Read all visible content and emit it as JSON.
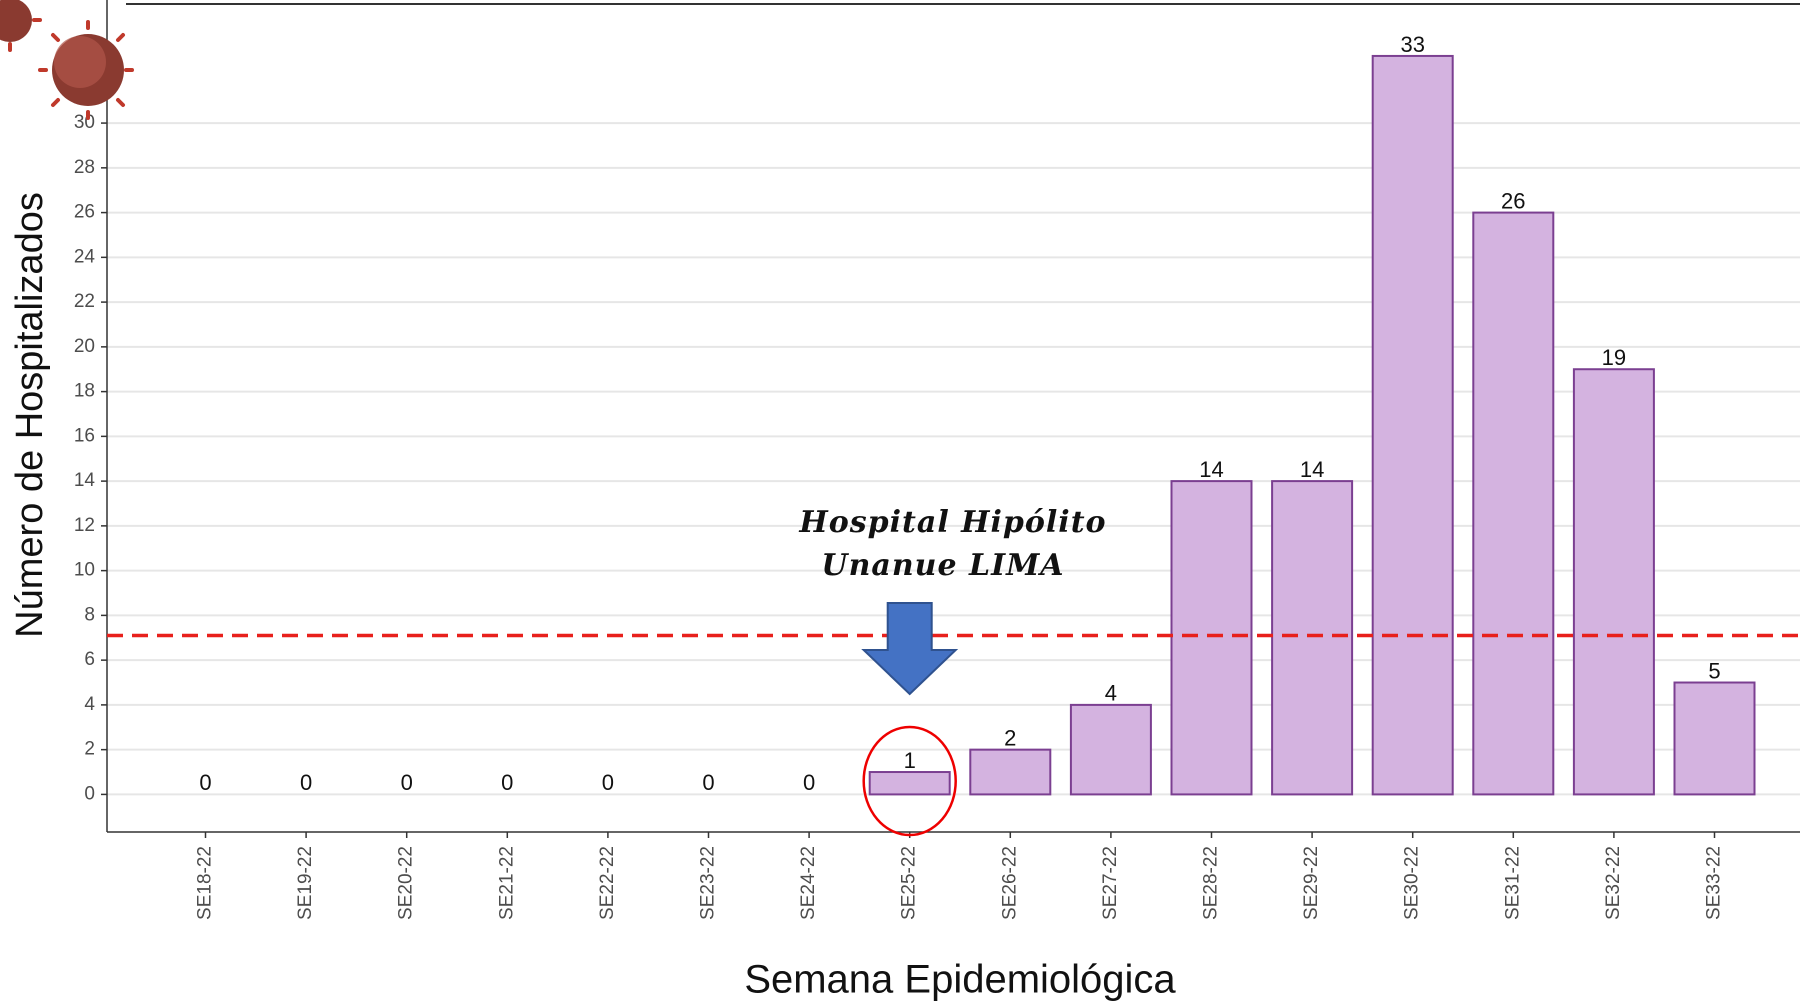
{
  "chart_data": {
    "type": "bar",
    "x_label": "Semana Epidemiológica",
    "y_label": "Número de Hospitalizados",
    "categories": [
      "SE18-22",
      "SE19-22",
      "SE20-22",
      "SE21-22",
      "SE22-22",
      "SE23-22",
      "SE24-22",
      "SE25-22",
      "SE26-22",
      "SE27-22",
      "SE28-22",
      "SE29-22",
      "SE30-22",
      "SE31-22",
      "SE32-22",
      "SE33-22"
    ],
    "values": [
      0,
      0,
      0,
      0,
      0,
      0,
      0,
      1,
      2,
      4,
      14,
      14,
      33,
      26,
      19,
      5
    ],
    "color": "#d4b3e0",
    "edge_color": "#7b3f91",
    "ylim": [
      -1.68,
      35.5
    ],
    "yticks": [
      0,
      2,
      4,
      6,
      8,
      10,
      12,
      14,
      16,
      18,
      20,
      22,
      24,
      26,
      28,
      30
    ],
    "grid": true,
    "reference_line": {
      "value": 7.1,
      "color": "#e8201c"
    },
    "annotation": {
      "lines": [
        "Hospital Hipólito",
        "Unanue LIMA"
      ],
      "category_index": 7
    }
  }
}
